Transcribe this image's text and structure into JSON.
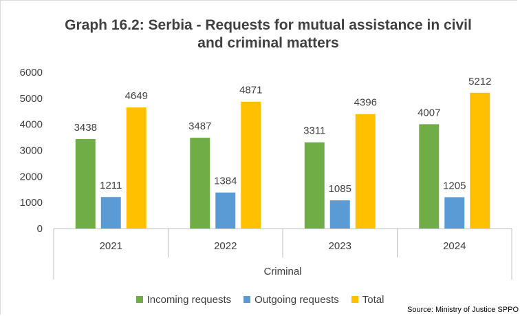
{
  "chart_data": {
    "type": "bar",
    "title_lines": [
      "Graph 16.2: Serbia - Requests for mutual assistance in civil",
      "and criminal matters"
    ],
    "categories": [
      "2021",
      "2022",
      "2023",
      "2024"
    ],
    "group_label": "Criminal",
    "series": [
      {
        "name": "Incoming requests",
        "color": "#70AD47",
        "values": [
          3438,
          3487,
          3311,
          4007
        ]
      },
      {
        "name": "Outgoing requests",
        "color": "#5B9BD5",
        "values": [
          1211,
          1384,
          1085,
          1205
        ]
      },
      {
        "name": "Total",
        "color": "#FFC000",
        "values": [
          4649,
          4871,
          4396,
          5212
        ]
      }
    ],
    "ylim": [
      0,
      6000
    ],
    "yticks": [
      "0",
      "1000",
      "2000",
      "3000",
      "4000",
      "5000",
      "6000"
    ],
    "grid": false,
    "legend_position": "bottom"
  },
  "source_note": "Source: Ministry of Justice SPPO"
}
